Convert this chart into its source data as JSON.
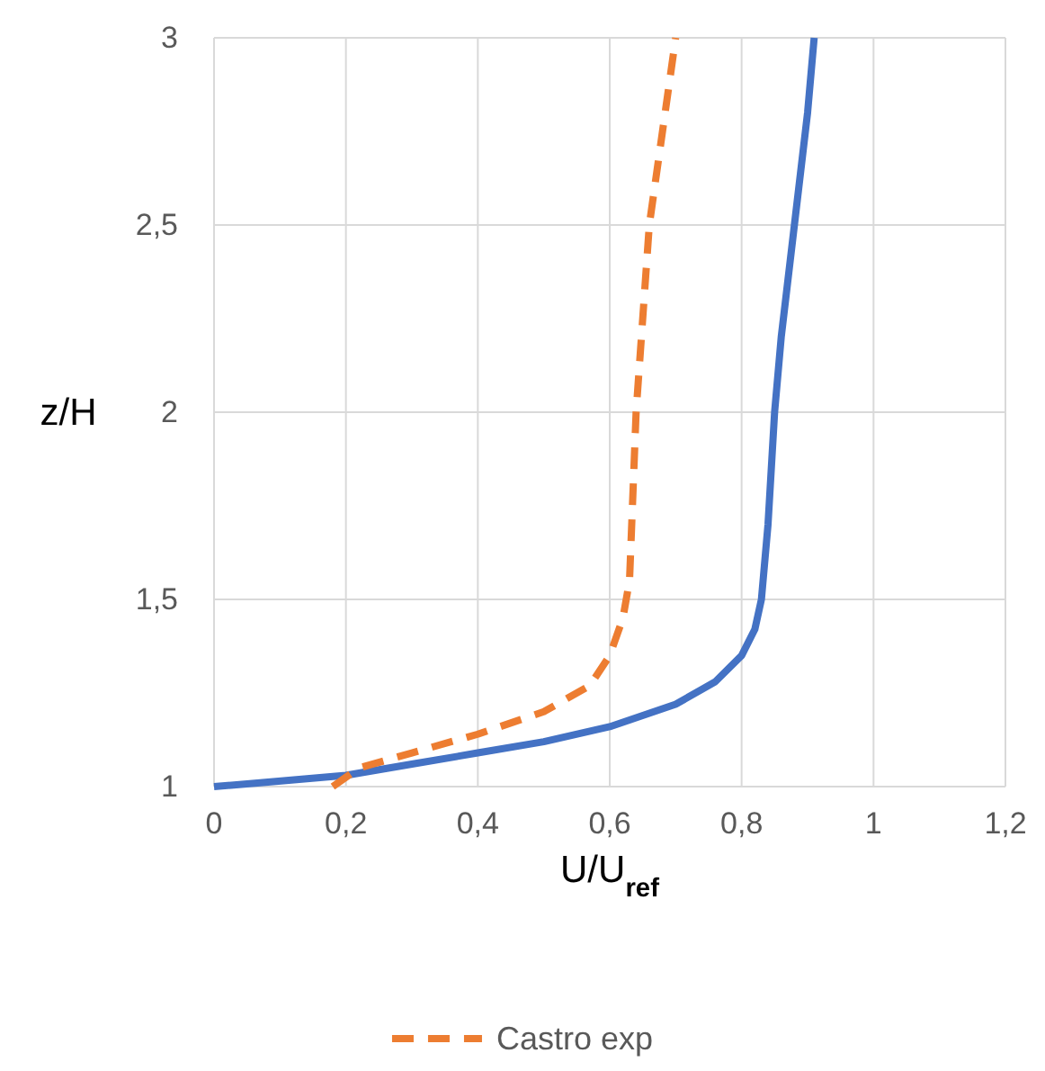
{
  "chart_data": {
    "type": "line",
    "xlabel": "U/U$_{ref}$",
    "ylabel": "z/H",
    "xlim": [
      0,
      1.2
    ],
    "xticks": [
      0,
      {
        "value": 0.2,
        "label": "0,2"
      },
      {
        "value": 0.4,
        "label": "0,4"
      },
      {
        "value": 0.6,
        "label": "0,6"
      },
      {
        "value": 0.8,
        "label": "0,8"
      },
      1,
      {
        "value": 1.2,
        "label": "1,2"
      }
    ],
    "ylim": [
      1,
      3
    ],
    "yticks": [
      1,
      {
        "value": 1.5,
        "label": "1,5"
      },
      2,
      {
        "value": 2.5,
        "label": "2,5"
      },
      3
    ],
    "grid": true,
    "legend": "bottom",
    "marker": "none",
    "series": [
      {
        "color": "#4472c4",
        "line_style": "solid",
        "x": [
          0,
          0.07,
          0.2,
          0.3,
          0.4,
          0.5,
          0.6,
          0.7,
          0.76,
          0.8,
          0.82,
          0.83,
          0.84,
          0.85,
          0.86,
          0.88,
          0.9,
          0.91
        ],
        "values": [
          1,
          1.01,
          1.03,
          1.06,
          1.09,
          1.12,
          1.16,
          1.22,
          1.28,
          1.35,
          1.42,
          1.5,
          1.7,
          2.0,
          2.2,
          2.5,
          2.8,
          3.0
        ]
      },
      {
        "name": "Castro exp",
        "color": "#ed7d31",
        "line_style": "dashed",
        "x": [
          0.18,
          0.22,
          0.3,
          0.4,
          0.5,
          0.57,
          0.6,
          0.62,
          0.63,
          0.64,
          0.66,
          0.7
        ],
        "values": [
          1,
          1.05,
          1.09,
          1.14,
          1.2,
          1.27,
          1.35,
          1.45,
          1.55,
          2.0,
          2.5,
          3.0
        ]
      }
    ]
  }
}
